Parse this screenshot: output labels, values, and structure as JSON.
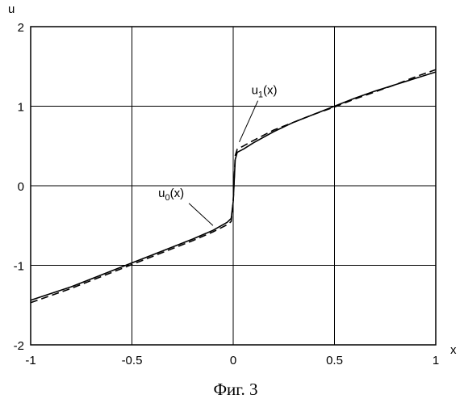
{
  "chart_data": {
    "type": "line",
    "title": "",
    "xlabel": "x",
    "ylabel": "u",
    "xlim": [
      -1,
      1
    ],
    "ylim": [
      -2,
      2
    ],
    "grid": true,
    "x_ticks": [
      -1,
      -0.5,
      0,
      0.5,
      1
    ],
    "x_tick_labels": [
      "-1",
      "-0.5",
      "0",
      "0.5",
      "1"
    ],
    "y_ticks": [
      -2,
      -1,
      0,
      1,
      2
    ],
    "y_tick_labels": [
      "-2",
      "-1",
      "0",
      "1",
      "2"
    ],
    "series": [
      {
        "name": "u0(x)",
        "style": "solid",
        "color": "#000000",
        "x": [
          -1,
          -0.8,
          -0.6,
          -0.5,
          -0.4,
          -0.2,
          -0.1,
          -0.03,
          -0.01,
          0,
          0.01,
          0.02,
          0.05,
          0.1,
          0.2,
          0.3,
          0.4,
          0.5,
          0.6,
          0.7,
          0.8,
          0.9,
          1.0
        ],
        "y": [
          -1.44,
          -1.27,
          -1.07,
          -0.97,
          -0.87,
          -0.67,
          -0.56,
          -0.46,
          -0.41,
          -0.2,
          0.33,
          0.42,
          0.46,
          0.54,
          0.68,
          0.8,
          0.9,
          1.0,
          1.1,
          1.19,
          1.27,
          1.35,
          1.43
        ]
      },
      {
        "name": "u1(x)",
        "style": "dashed",
        "color": "#000000",
        "x": [
          -1,
          -0.8,
          -0.6,
          -0.5,
          -0.4,
          -0.2,
          -0.1,
          -0.03,
          -0.01,
          0,
          0.01,
          0.02,
          0.05,
          0.1,
          0.2,
          0.3,
          0.4,
          0.5,
          0.6,
          0.7,
          0.8,
          0.9,
          1.0
        ],
        "y": [
          -1.47,
          -1.29,
          -1.09,
          -0.99,
          -0.89,
          -0.69,
          -0.58,
          -0.49,
          -0.45,
          -0.2,
          0.38,
          0.46,
          0.5,
          0.57,
          0.7,
          0.8,
          0.9,
          0.99,
          1.09,
          1.18,
          1.27,
          1.37,
          1.46
        ]
      }
    ],
    "annotations": [
      {
        "base": "u",
        "sub": "1",
        "rest": "(x)",
        "x": 0.09,
        "y": 1.15,
        "arrow_to": [
          0.03,
          0.55
        ]
      },
      {
        "base": "u",
        "sub": "0",
        "rest": "(x)",
        "x": -0.37,
        "y": -0.14,
        "arrow_to": [
          -0.1,
          -0.5
        ]
      }
    ],
    "caption": "Фиг. 3"
  }
}
